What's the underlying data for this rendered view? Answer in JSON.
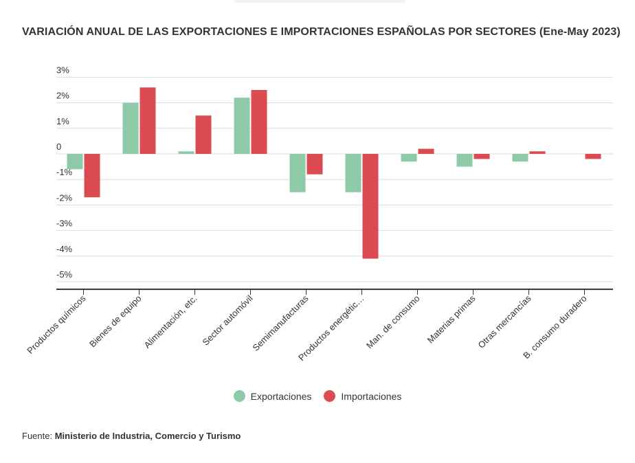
{
  "chart_data": {
    "type": "bar",
    "title": "VARIACIÓN ANUAL DE LAS EXPORTACIONES E IMPORTACIONES ESPAÑOLAS POR SECTORES (Ene-May 2023)",
    "categories": [
      "Productos químicos",
      "Bienes de equipo",
      "Alimentación, etc.",
      "Sector automóvil",
      "Semimanufacturas",
      "Productos energétic…",
      "Man. de consumo",
      "Materias primas",
      "Otras mercancías",
      "B. consumo duradero"
    ],
    "series": [
      {
        "name": "Exportaciones",
        "color": "#8ec9a8",
        "values": [
          -0.6,
          2.0,
          0.1,
          2.2,
          -1.5,
          -1.5,
          -0.3,
          -0.5,
          -0.3,
          0.0
        ]
      },
      {
        "name": "Importaciones",
        "color": "#dd4b52",
        "values": [
          -1.7,
          2.6,
          1.5,
          2.5,
          -0.8,
          -4.1,
          0.2,
          -0.2,
          0.1,
          -0.2
        ]
      }
    ],
    "y_ticks": [
      3,
      2,
      1,
      0,
      -1,
      -2,
      -3,
      -4,
      -5
    ],
    "y_tick_labels": [
      "3%",
      "2%",
      "1%",
      "0",
      "-1%",
      "-2%",
      "-3%",
      "-4%",
      "-5%"
    ],
    "ylim": [
      -5.3,
      3
    ],
    "xlabel": "",
    "ylabel": "",
    "grid": true,
    "legend": "bottom-center"
  },
  "source": {
    "label": "Fuente:",
    "name": "Ministerio de Industria, Comercio y Turismo"
  }
}
